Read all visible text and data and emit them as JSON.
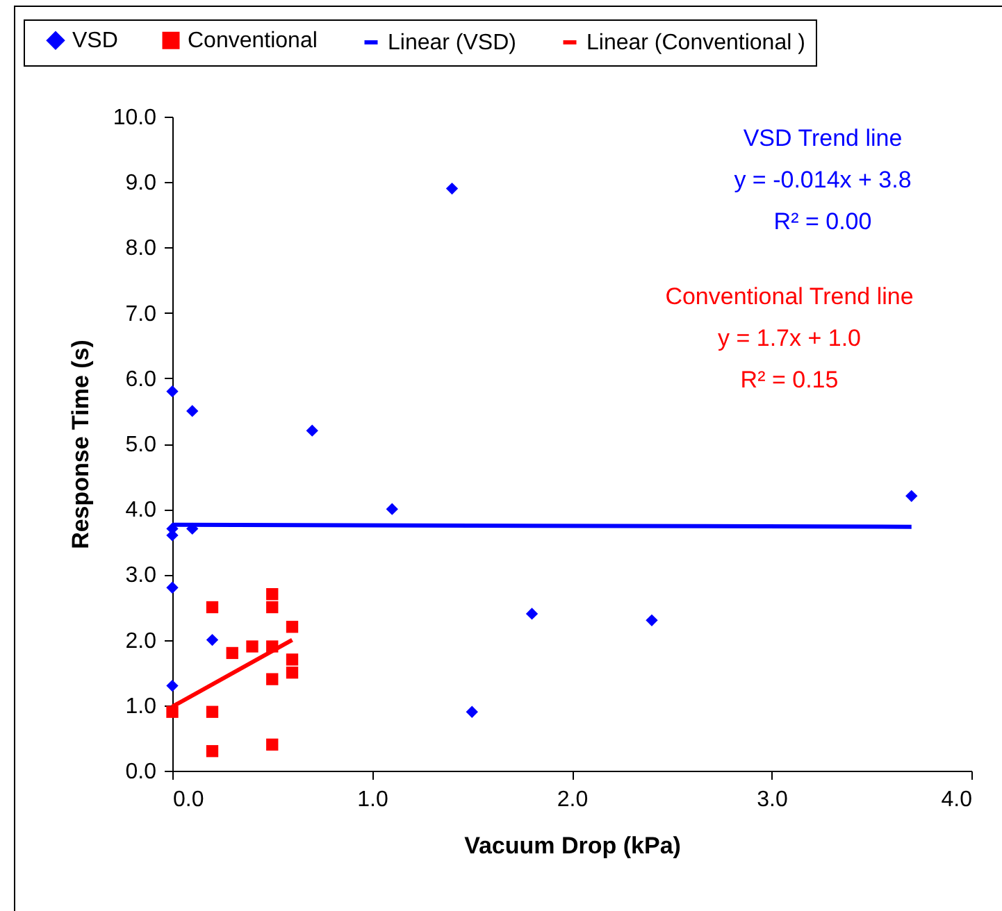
{
  "chart_data": {
    "type": "scatter",
    "xlabel": "Vacuum Drop (kPa)",
    "ylabel": "Response Time (s)",
    "xlim": [
      0,
      4
    ],
    "ylim": [
      0,
      10
    ],
    "xticks": [
      {
        "value": 0,
        "label": "0.0"
      },
      {
        "value": 1,
        "label": "1.0"
      },
      {
        "value": 2,
        "label": "2.0"
      },
      {
        "value": 3,
        "label": "3.0"
      },
      {
        "value": 4,
        "label": "4.0"
      }
    ],
    "yticks": [
      {
        "value": 0,
        "label": "0.0"
      },
      {
        "value": 1,
        "label": "1.0"
      },
      {
        "value": 2,
        "label": "2.0"
      },
      {
        "value": 3,
        "label": "3.0"
      },
      {
        "value": 4,
        "label": "4.0"
      },
      {
        "value": 5,
        "label": "5.0"
      },
      {
        "value": 6,
        "label": "6.0"
      },
      {
        "value": 7,
        "label": "7.0"
      },
      {
        "value": 8,
        "label": "8.0"
      },
      {
        "value": 9,
        "label": "9.0"
      },
      {
        "value": 10,
        "label": "10.0"
      }
    ],
    "grid": false,
    "legend": "top",
    "series": [
      {
        "name": "VSD",
        "marker": "diamond",
        "color": "#0000ff",
        "x": [
          0,
          0.1,
          0.7,
          1.1,
          0,
          0,
          0.1,
          0,
          0.2,
          0,
          1.4,
          3.7,
          1.8,
          2.4,
          1.5
        ],
        "values": [
          5.8,
          5.5,
          5.2,
          4.0,
          3.7,
          3.6,
          3.7,
          2.8,
          2.0,
          1.3,
          8.9,
          4.2,
          2.4,
          2.3,
          0.9
        ]
      },
      {
        "name": "Conventional",
        "marker": "square",
        "color": "#ff0000",
        "x": [
          0,
          0.2,
          0.2,
          0.2,
          0.3,
          0.4,
          0.5,
          0.5,
          0.5,
          0.5,
          0.5,
          0.6,
          0.6,
          0.6
        ],
        "values": [
          0.9,
          2.5,
          0.9,
          0.3,
          1.8,
          1.9,
          2.7,
          2.5,
          1.9,
          1.4,
          0.4,
          2.2,
          1.7,
          1.5
        ]
      },
      {
        "name": "Linear (VSD)",
        "type": "line",
        "color": "#0000ff",
        "x": [
          0,
          3.7
        ],
        "values": [
          3.76,
          3.73
        ]
      },
      {
        "name": "Linear (Conventional )",
        "type": "line",
        "color": "#ff0000",
        "x": [
          0,
          0.6
        ],
        "values": [
          0.98,
          2.0
        ]
      }
    ],
    "annotations": [
      "VSD Trend line\ny = -0.014x + 3.8\nR² = 0.00",
      "Conventional Trend line\ny = 1.7x + 1.0\nR² = 0.15"
    ]
  }
}
